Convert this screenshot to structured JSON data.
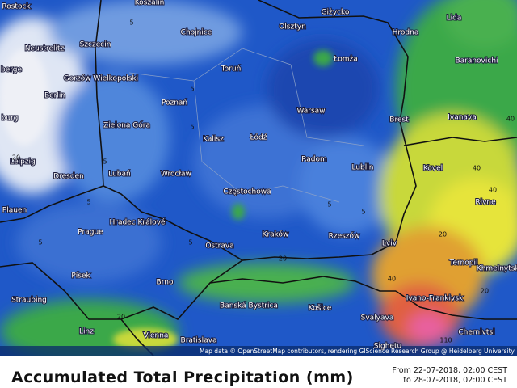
{
  "map": {
    "title": "Accumulated Total Precipitation (mm)",
    "date_from": "From 22-07-2018, 02:00 CEST",
    "date_to": "to 28-07-2018, 02:00 CEST",
    "attribution": "Map data © OpenStreetMap contributors, rendering GIScience Research Group @ Heidelberg University",
    "cities": [
      "Rostock",
      "Koszalin",
      "Giżycko",
      "Lida",
      "Chojnice",
      "Olsztyn",
      "Hrodna",
      "Szczecin",
      "Neustrelitz",
      "Łomża",
      "Baranovichi",
      "Gorzów Wielkopolski",
      "Toruń",
      "Berlin",
      "Poznań",
      "Warsaw",
      "Brest",
      "Ivanava",
      "Zielona Góra",
      "Łódź",
      "Kalisz",
      "Radom",
      "Lublin",
      "Kovel",
      "Leipzig",
      "Dresden",
      "Lubań",
      "Wrocław",
      "Częstochowa",
      "Rivne",
      "Plauen",
      "Hradec Králové",
      "Prague",
      "Kraków",
      "Rzeszów",
      "Ostrava",
      "Lviv",
      "Ternopil",
      "Khmelnytskyi",
      "Písek",
      "Brno",
      "Banská Bystrica",
      "Ivano-Frankivsk",
      "Straubing",
      "Košice",
      "Svalyava",
      "Linz",
      "Vienna",
      "Bratislava",
      "Chernivtsi",
      "Sighetu",
      "berge",
      "burg"
    ],
    "contour_labels": [
      "5",
      "5",
      "5",
      "5",
      "5",
      "5",
      "5",
      "5",
      "5",
      "20",
      "20",
      "20",
      "40",
      "40",
      "40",
      "40",
      "20",
      "20",
      "110"
    ]
  }
}
